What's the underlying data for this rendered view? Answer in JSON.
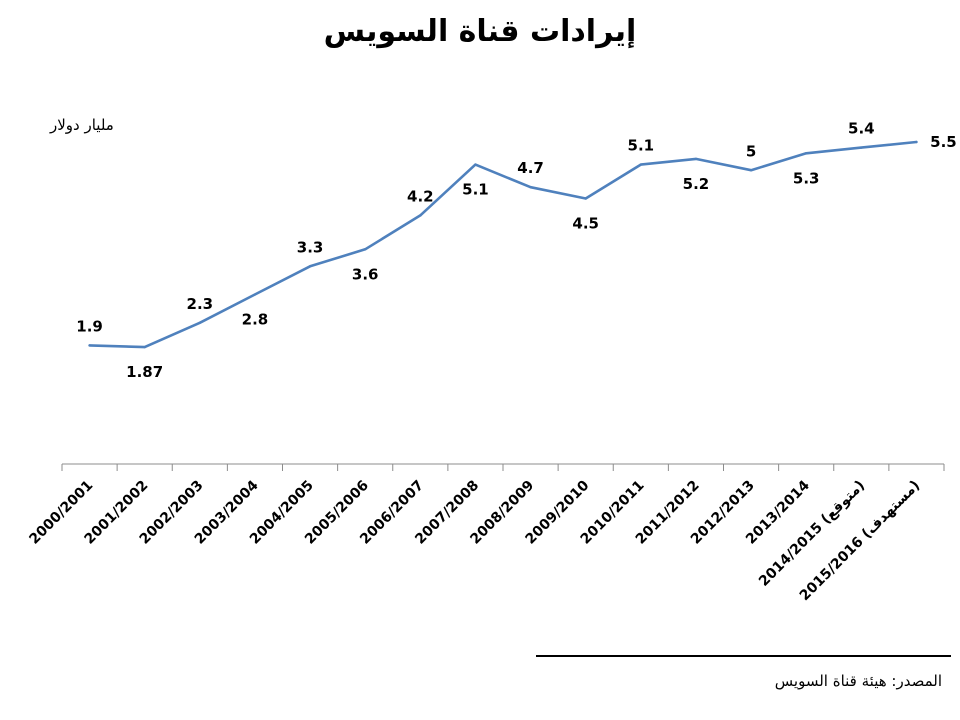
{
  "chart_data": {
    "type": "line",
    "title": "إيرادات قناة السويس",
    "ylabel": "مليار دولار",
    "xlabel": "",
    "categories": [
      "2000/2001",
      "2001/2002",
      "2002/2003",
      "2003/2004",
      "2004/2005",
      "2005/2006",
      "2006/2007",
      "2007/2008",
      "2008/2009",
      "2009/2010",
      "2010/2011",
      "2011/2012",
      "2012/2013",
      "2013/2014",
      "2014/2015 (متوقع)",
      "2015/2016 (مستهدف)"
    ],
    "series": [
      {
        "values": [
          1.9,
          1.87,
          2.3,
          2.8,
          3.3,
          3.6,
          4.2,
          5.1,
          4.7,
          4.5,
          5.1,
          5.2,
          5,
          5.3,
          5.4,
          5.5
        ]
      }
    ],
    "data_labels": [
      "1.9",
      "1.87",
      "2.3",
      "2.8",
      "3.3",
      "3.6",
      "4.2",
      "5.1",
      "4.7",
      "4.5",
      "5.1",
      "5.2",
      "5",
      "5.3",
      "5.4",
      "5.5"
    ],
    "ylim": [
      0,
      6
    ],
    "grid": false,
    "legend": "none",
    "line_color": "#4f81bd"
  },
  "source": "المصدر: هيئة قناة السويس"
}
